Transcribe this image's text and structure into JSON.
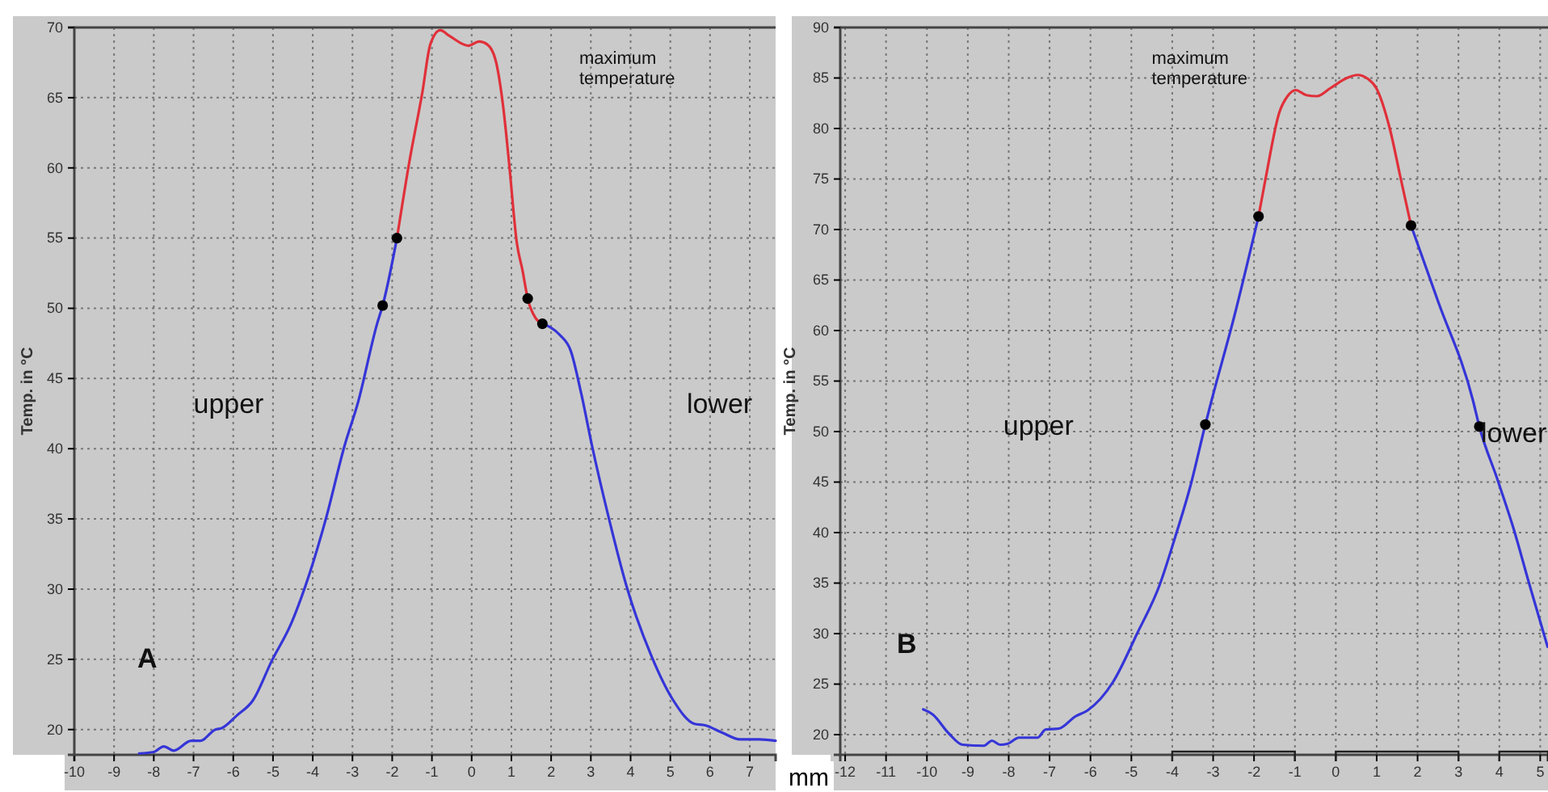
{
  "chart_data": [
    {
      "type": "line",
      "xlabel": "mm",
      "ylabel": "Temp. in °C",
      "xlim": [
        -10,
        7.65
      ],
      "ylim": [
        18.2,
        70
      ],
      "xticks": [
        -10,
        -9,
        -8,
        -7,
        -6,
        -5,
        -4,
        -3,
        -2,
        -1,
        0,
        1,
        2,
        3,
        4,
        5,
        6,
        7
      ],
      "yticks": [
        20,
        25,
        30,
        35,
        40,
        45,
        50,
        55,
        60,
        65,
        70
      ],
      "grid": true,
      "line_style": "solid",
      "marker": "none",
      "annotations": [
        "maximum temperature",
        "upper",
        "lower",
        "A"
      ],
      "series": [
        {
          "color": "#3535d8",
          "x": [
            -8.37,
            -8.0,
            -7.75,
            -7.5,
            -7.06,
            -6.83,
            -6.45,
            -6.29,
            -5.91,
            -5.5,
            -5.03,
            -4.55,
            -4.08,
            -3.67,
            -3.2,
            -2.86,
            -2.38,
            -2.24,
            -1.88
          ],
          "values": [
            18.3,
            18.4,
            18.8,
            18.5,
            19.2,
            19.2,
            20.0,
            20.1,
            21.0,
            22.1,
            24.9,
            27.5,
            31.1,
            35.0,
            40.2,
            43.3,
            48.9,
            50.2,
            55.0
          ]
        },
        {
          "color": "#e0303a",
          "x": [
            -1.88,
            -1.57,
            -1.24,
            -1.04,
            -0.79,
            -0.56,
            -0.08,
            0.19,
            0.39,
            0.6,
            0.8,
            0.94,
            1.14,
            1.28,
            1.41,
            1.61,
            1.78
          ],
          "values": [
            55.0,
            60.4,
            65.4,
            68.8,
            69.8,
            69.4,
            68.7,
            69.0,
            68.8,
            67.7,
            64.2,
            60.4,
            54.6,
            52.7,
            50.7,
            49.3,
            48.9
          ]
        },
        {
          "color": "#3535d8",
          "x": [
            1.78,
            2.22,
            2.49,
            2.76,
            3.03,
            3.44,
            3.92,
            4.53,
            5.07,
            5.61,
            5.88,
            6.29,
            6.76,
            7.24,
            7.65
          ],
          "values": [
            48.9,
            48.1,
            47.0,
            43.9,
            40.2,
            35.2,
            30.0,
            25.2,
            22.1,
            20.4,
            20.3,
            19.8,
            19.3,
            19.3,
            19.2
          ]
        },
        {
          "type": "scatter",
          "color": "#000000",
          "marker": "circle",
          "x": [
            -2.24,
            -1.88,
            1.41,
            1.78
          ],
          "values": [
            50.2,
            55.0,
            50.7,
            48.9
          ]
        }
      ]
    },
    {
      "type": "line",
      "ylabel": "Temp. in °C",
      "xlim": [
        -12.12,
        5.19
      ],
      "ylim": [
        18,
        90
      ],
      "xticks": [
        -12,
        -11,
        -10,
        -9,
        -8,
        -7,
        -6,
        -5,
        -4,
        -3,
        -2,
        -1,
        0,
        1,
        2,
        3,
        4,
        5
      ],
      "yticks": [
        20,
        25,
        30,
        35,
        40,
        45,
        50,
        55,
        60,
        65,
        70,
        75,
        80,
        85,
        90
      ],
      "grid": true,
      "line_style": "solid",
      "marker": "none",
      "annotations": [
        "maximum temperature",
        "upper",
        "lower",
        "B"
      ],
      "series": [
        {
          "color": "#3535d8",
          "x": [
            -10.09,
            -9.86,
            -9.46,
            -9.13,
            -8.61,
            -8.41,
            -8.21,
            -8.02,
            -7.75,
            -7.29,
            -7.1,
            -6.77,
            -6.37,
            -6.07,
            -5.45,
            -4.86,
            -4.31,
            -3.94,
            -3.55,
            -3.19,
            -3.05,
            -2.49,
            -1.89
          ],
          "values": [
            22.5,
            22.0,
            20.1,
            19.0,
            18.9,
            19.4,
            19.0,
            19.1,
            19.7,
            19.7,
            20.5,
            20.6,
            21.8,
            22.4,
            25.2,
            30.0,
            34.8,
            39.4,
            44.7,
            50.7,
            52.9,
            61.3,
            71.3
          ]
        },
        {
          "color": "#e0303a",
          "x": [
            -1.89,
            -1.71,
            -1.38,
            -1.18,
            -0.98,
            -0.72,
            -0.46,
            -0.13,
            0.27,
            0.53,
            0.79,
            0.99,
            1.32,
            1.58,
            1.84
          ],
          "values": [
            71.3,
            75.2,
            81.6,
            83.2,
            83.8,
            83.3,
            83.2,
            84.0,
            85.0,
            85.3,
            84.9,
            84.0,
            80.0,
            75.2,
            70.4
          ]
        },
        {
          "color": "#3535d8",
          "x": [
            1.84,
            2.5,
            3.36,
            3.51,
            3.95,
            4.34,
            4.74,
            5.18
          ],
          "values": [
            70.4,
            62.9,
            53.0,
            50.5,
            45.3,
            40.5,
            34.8,
            28.7
          ]
        },
        {
          "type": "scatter",
          "color": "#000000",
          "marker": "circle",
          "x": [
            -3.19,
            -1.89,
            1.84,
            3.51
          ],
          "values": [
            50.7,
            71.3,
            70.4,
            50.5
          ]
        }
      ]
    }
  ]
}
